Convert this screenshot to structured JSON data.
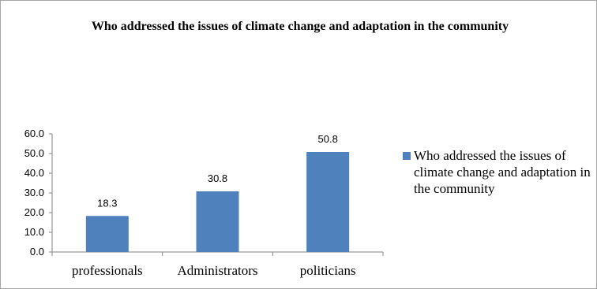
{
  "chart_data": {
    "type": "bar",
    "title": "Who  addressed  the issues of climate  change and adaptation  in  the community",
    "categories": [
      "professionals",
      "Administrators",
      "politicians"
    ],
    "series": [
      {
        "name": "Who  addressed  the issues of climate change and adaptation in the community",
        "values": [
          18.3,
          30.8,
          50.8
        ],
        "color": "#4f81bd"
      }
    ],
    "data_labels": [
      "18.3",
      "30.8",
      "50.8"
    ],
    "yticks": [
      "0.0",
      "10.0",
      "20.0",
      "30.0",
      "40.0",
      "50.0",
      "60.0"
    ],
    "ylim": [
      0,
      60
    ],
    "grid": false,
    "legend_position": "right"
  }
}
